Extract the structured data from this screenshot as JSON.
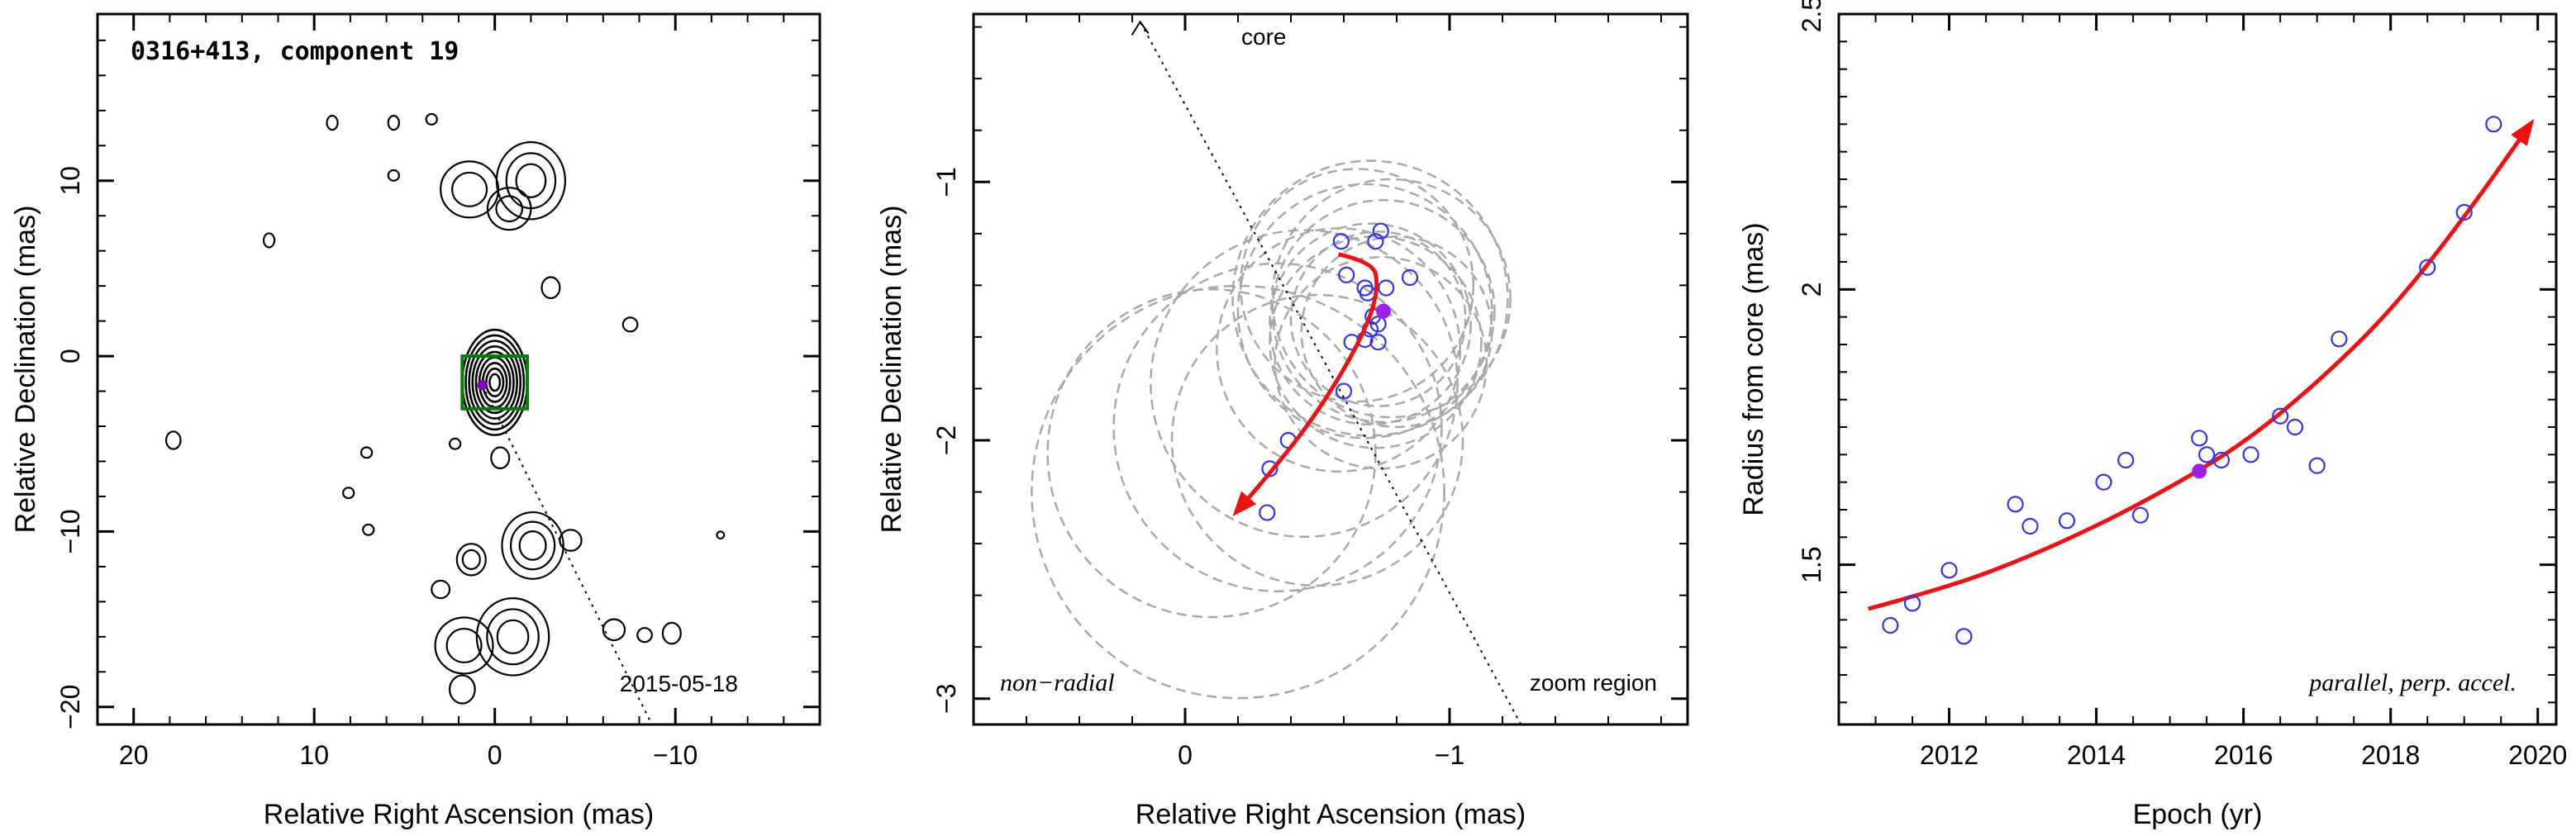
{
  "chart_data": [
    {
      "type": "contour",
      "panel": "left",
      "title": "0316+413, component 19",
      "xlabel": "Relative Right Ascension (mas)",
      "ylabel": "Relative Declination (mas)",
      "xlim": [
        22,
        -18
      ],
      "ylim": [
        -21,
        19.5
      ],
      "xticks": [
        20,
        10,
        0,
        -10
      ],
      "xtick_labels": [
        "20",
        "10",
        "0",
        "−10"
      ],
      "yticks": [
        10,
        0,
        -10,
        -20
      ],
      "ytick_labels": [
        "10",
        "0",
        "−10",
        "−20"
      ],
      "date": "2015-05-18",
      "zoom_box": {
        "x": [
          1.8,
          -1.8
        ],
        "y": [
          -3.0,
          0.0
        ],
        "color": "#008000"
      },
      "component": {
        "x": 0.7,
        "y": -1.65,
        "color": "#8000c0"
      },
      "direction_line": {
        "from": [
          0.7,
          -1.65
        ],
        "to": [
          -8.7,
          -21
        ],
        "style": "dotted"
      },
      "core": {
        "x": 0,
        "y": 0
      },
      "contour_blobs": [
        {
          "x": 0,
          "y": -1.5,
          "rx": 1.8,
          "ry": 3.0,
          "levels": 9
        },
        {
          "x": 1.4,
          "y": 9.5,
          "rx": 1.6,
          "ry": 1.6,
          "levels": 2
        },
        {
          "x": -2.0,
          "y": 10.0,
          "rx": 1.9,
          "ry": 2.2,
          "levels": 3
        },
        {
          "x": -0.8,
          "y": 8.4,
          "rx": 1.2,
          "ry": 1.2,
          "levels": 2
        },
        {
          "x": -3.1,
          "y": 3.9,
          "rx": 0.5,
          "ry": 0.6,
          "levels": 1
        },
        {
          "x": -2.1,
          "y": -10.8,
          "rx": 1.7,
          "ry": 1.9,
          "levels": 3
        },
        {
          "x": 1.3,
          "y": -11.6,
          "rx": 0.8,
          "ry": 0.9,
          "levels": 2
        },
        {
          "x": -1.0,
          "y": -16.0,
          "rx": 2.0,
          "ry": 2.2,
          "levels": 3
        },
        {
          "x": 1.7,
          "y": -16.5,
          "rx": 1.6,
          "ry": 1.6,
          "levels": 2
        },
        {
          "x": 1.8,
          "y": -19.0,
          "rx": 0.7,
          "ry": 0.8,
          "levels": 1
        },
        {
          "x": -4.2,
          "y": -10.5,
          "rx": 0.6,
          "ry": 0.6,
          "levels": 1
        },
        {
          "x": 3.0,
          "y": -13.3,
          "rx": 0.5,
          "ry": 0.5,
          "levels": 1
        },
        {
          "x": -0.3,
          "y": -5.8,
          "rx": 0.5,
          "ry": 0.6,
          "levels": 1
        },
        {
          "x": -6.6,
          "y": -15.6,
          "rx": 0.6,
          "ry": 0.6,
          "levels": 1
        },
        {
          "x": -9.8,
          "y": -15.8,
          "rx": 0.5,
          "ry": 0.6,
          "levels": 1
        },
        {
          "x": -8.3,
          "y": -15.9,
          "rx": 0.4,
          "ry": 0.4,
          "levels": 1
        },
        {
          "x": 17.8,
          "y": -4.8,
          "rx": 0.4,
          "ry": 0.5,
          "levels": 1
        },
        {
          "x": -7.5,
          "y": 1.8,
          "rx": 0.4,
          "ry": 0.4,
          "levels": 1
        },
        {
          "x": 9.0,
          "y": 13.3,
          "rx": 0.3,
          "ry": 0.4,
          "levels": 1
        },
        {
          "x": 5.6,
          "y": 13.3,
          "rx": 0.3,
          "ry": 0.4,
          "levels": 1
        },
        {
          "x": 3.5,
          "y": 13.5,
          "rx": 0.3,
          "ry": 0.3,
          "levels": 1
        },
        {
          "x": 5.6,
          "y": 10.3,
          "rx": 0.3,
          "ry": 0.3,
          "levels": 1
        },
        {
          "x": 12.5,
          "y": 6.6,
          "rx": 0.3,
          "ry": 0.4,
          "levels": 1
        },
        {
          "x": 8.1,
          "y": -7.8,
          "rx": 0.3,
          "ry": 0.3,
          "levels": 1
        },
        {
          "x": 7.0,
          "y": -9.9,
          "rx": 0.3,
          "ry": 0.3,
          "levels": 1
        },
        {
          "x": 7.1,
          "y": -5.5,
          "rx": 0.3,
          "ry": 0.3,
          "levels": 1
        },
        {
          "x": 2.2,
          "y": -5.0,
          "rx": 0.3,
          "ry": 0.3,
          "levels": 1
        },
        {
          "x": -12.5,
          "y": -10.2,
          "rx": 0.2,
          "ry": 0.2,
          "levels": 1
        }
      ]
    },
    {
      "type": "scatter",
      "panel": "middle",
      "xlabel": "Relative Right Ascension (mas)",
      "ylabel": "Relative Declination (mas)",
      "xlim": [
        0.8,
        -1.9
      ],
      "ylim": [
        -3.1,
        -0.35
      ],
      "xticks": [
        0,
        -1
      ],
      "xtick_labels": [
        "0",
        "−1"
      ],
      "yticks": [
        -1,
        -2,
        -3
      ],
      "ytick_labels": [
        "−1",
        "−2",
        "−3"
      ],
      "note_left": "non−radial",
      "note_right": "zoom region",
      "core_label": "core",
      "core_line": {
        "from": [
          -1.27,
          -3.1
        ],
        "to": [
          0.17,
          -0.38
        ]
      },
      "points": [
        [
          -0.59,
          -1.23
        ],
        [
          -0.61,
          -1.36
        ],
        [
          -0.68,
          -1.41
        ],
        [
          -0.69,
          -1.43
        ],
        [
          -0.72,
          -1.23
        ],
        [
          -0.74,
          -1.19
        ],
        [
          -0.85,
          -1.37
        ],
        [
          -0.76,
          -1.41
        ],
        [
          -0.71,
          -1.52
        ],
        [
          -0.73,
          -1.55
        ],
        [
          -0.7,
          -1.57
        ],
        [
          -0.68,
          -1.61
        ],
        [
          -0.63,
          -1.62
        ],
        [
          -0.73,
          -1.62
        ],
        [
          -0.6,
          -1.81
        ],
        [
          -0.39,
          -2.0
        ],
        [
          -0.32,
          -2.11
        ],
        [
          -0.31,
          -2.28
        ]
      ],
      "highlight_point": [
        -0.75,
        -1.5
      ],
      "circles": [
        {
          "x": -0.7,
          "y": -1.55,
          "r": 0.38
        },
        {
          "x": -0.75,
          "y": -1.5,
          "r": 0.42
        },
        {
          "x": -0.78,
          "y": -1.45,
          "r": 0.45
        },
        {
          "x": -0.72,
          "y": -1.62,
          "r": 0.4
        },
        {
          "x": -0.68,
          "y": -1.5,
          "r": 0.48
        },
        {
          "x": -0.8,
          "y": -1.58,
          "r": 0.36
        },
        {
          "x": -0.65,
          "y": -1.4,
          "r": 0.44
        },
        {
          "x": -0.74,
          "y": -1.7,
          "r": 0.4
        },
        {
          "x": -0.7,
          "y": -1.45,
          "r": 0.52
        },
        {
          "x": -0.73,
          "y": -1.53,
          "r": 0.33
        },
        {
          "x": -0.58,
          "y": -1.65,
          "r": 0.46
        },
        {
          "x": -0.5,
          "y": -2.0,
          "r": 0.55
        },
        {
          "x": -0.2,
          "y": -2.2,
          "r": 0.78
        },
        {
          "x": -0.1,
          "y": -2.05,
          "r": 0.62
        },
        {
          "x": -0.35,
          "y": -1.95,
          "r": 0.62
        },
        {
          "x": -0.45,
          "y": -1.78,
          "r": 0.58
        }
      ],
      "trajectory": [
        [
          -0.58,
          -1.28
        ],
        [
          -0.71,
          -1.31
        ],
        [
          -0.73,
          -1.4
        ],
        [
          -0.7,
          -1.53
        ],
        [
          -0.6,
          -1.73
        ],
        [
          -0.46,
          -1.95
        ],
        [
          -0.31,
          -2.14
        ],
        [
          -0.2,
          -2.27
        ]
      ]
    },
    {
      "type": "scatter",
      "panel": "right",
      "xlabel": "Epoch (yr)",
      "ylabel": "Radius from core (mas)",
      "xlim": [
        2010.5,
        2020.25
      ],
      "ylim": [
        1.21,
        2.5
      ],
      "xticks": [
        2012,
        2014,
        2016,
        2018,
        2020
      ],
      "xtick_labels": [
        "2012",
        "2014",
        "2016",
        "2018",
        "2020"
      ],
      "yticks": [
        1.5,
        2,
        2.5
      ],
      "ytick_labels": [
        "1.5",
        "2",
        "2.5"
      ],
      "note": "parallel, perp. accel.",
      "points": [
        [
          2011.2,
          1.39
        ],
        [
          2011.5,
          1.43
        ],
        [
          2012.0,
          1.49
        ],
        [
          2012.2,
          1.37
        ],
        [
          2012.9,
          1.61
        ],
        [
          2013.1,
          1.57
        ],
        [
          2013.6,
          1.58
        ],
        [
          2014.1,
          1.65
        ],
        [
          2014.4,
          1.69
        ],
        [
          2014.6,
          1.59
        ],
        [
          2015.4,
          1.73
        ],
        [
          2015.5,
          1.7
        ],
        [
          2015.7,
          1.69
        ],
        [
          2016.1,
          1.7
        ],
        [
          2016.5,
          1.77
        ],
        [
          2016.7,
          1.75
        ],
        [
          2017.0,
          1.68
        ],
        [
          2017.3,
          1.91
        ],
        [
          2018.5,
          2.04
        ],
        [
          2019.0,
          2.14
        ],
        [
          2019.4,
          2.3
        ]
      ],
      "highlight_point": [
        2015.4,
        1.67
      ],
      "fit_curve": [
        [
          2010.9,
          1.42
        ],
        [
          2012.0,
          1.46
        ],
        [
          2013.0,
          1.51
        ],
        [
          2014.0,
          1.57
        ],
        [
          2015.0,
          1.64
        ],
        [
          2016.0,
          1.72
        ],
        [
          2017.0,
          1.83
        ],
        [
          2018.0,
          1.96
        ],
        [
          2019.0,
          2.13
        ],
        [
          2019.9,
          2.3
        ]
      ]
    }
  ],
  "colors": {
    "point": "#3333ee",
    "highlight": "#9a22e6",
    "trend": "#ee1111",
    "circle": "#a8a8a8",
    "zoom_box": "#008000"
  }
}
